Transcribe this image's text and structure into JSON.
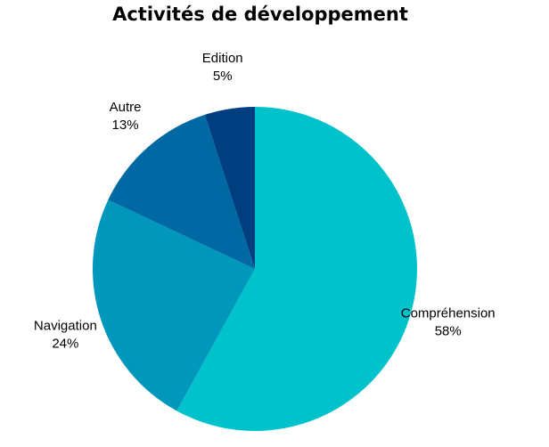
{
  "chart_data": {
    "type": "pie",
    "title": "Activités de développement",
    "start_angle_deg": 0,
    "direction": "clockwise",
    "slices": [
      {
        "label": "Compréhension",
        "value": 58,
        "value_label": "58%",
        "color": "#00c2cb"
      },
      {
        "label": "Navigation",
        "value": 24,
        "value_label": "24%",
        "color": "#0097bd"
      },
      {
        "label": "Autre",
        "value": 13,
        "value_label": "13%",
        "color": "#0068a3"
      },
      {
        "label": "Edition",
        "value": 5,
        "value_label": "5%",
        "color": "#003f7f"
      }
    ],
    "legend": "none"
  }
}
